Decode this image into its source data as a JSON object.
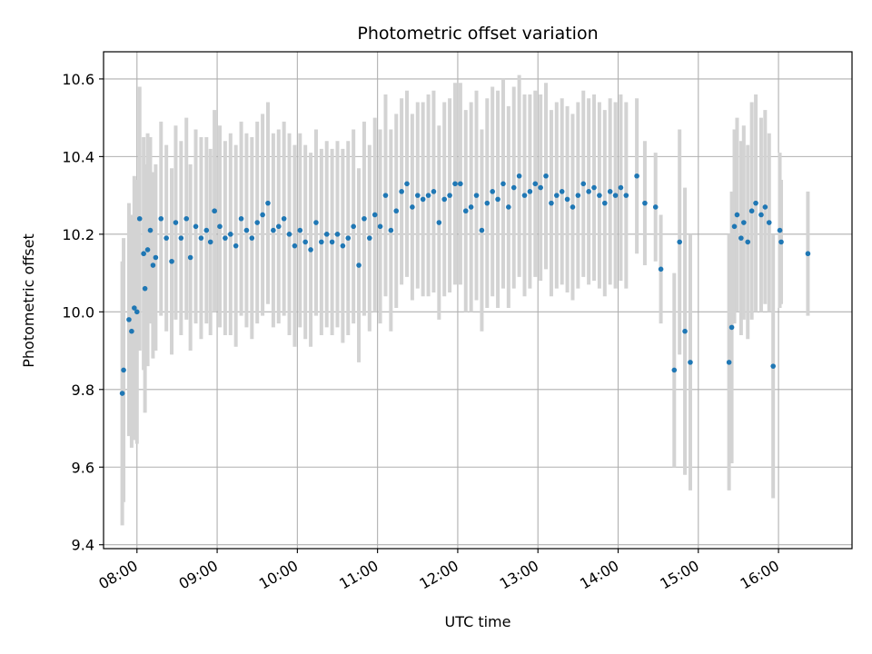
{
  "chart_data": {
    "type": "scatter",
    "title": "Photometric offset variation",
    "xlabel": "UTC time",
    "ylabel": "Photometric offset",
    "grid": true,
    "xlim": [
      "07:35",
      "16:55"
    ],
    "ylim": [
      9.39,
      10.67
    ],
    "x_ticks": [
      "08:00",
      "09:00",
      "10:00",
      "11:00",
      "12:00",
      "13:00",
      "14:00",
      "15:00",
      "16:00"
    ],
    "y_ticks": [
      9.4,
      9.6,
      9.8,
      10.0,
      10.2,
      10.4,
      10.6
    ],
    "y_tick_labels": [
      "9.4",
      "9.6",
      "9.8",
      "10.0",
      "10.2",
      "10.4",
      "10.6"
    ],
    "colors": {
      "points": "#1f77b4",
      "error_bars": "#d3d3d3",
      "grid": "#b0b0b0"
    },
    "series": [
      {
        "x": [
          "07:49",
          "07:50",
          "07:54",
          "07:56",
          "07:58",
          "08:00",
          "08:02",
          "08:05",
          "08:06",
          "08:08",
          "08:10",
          "08:12",
          "08:14",
          "08:18",
          "08:22",
          "08:26",
          "08:29",
          "08:33",
          "08:37",
          "08:40",
          "08:44",
          "08:48",
          "08:52",
          "08:55",
          "08:58",
          "09:02",
          "09:06",
          "09:10",
          "09:14",
          "09:18",
          "09:22",
          "09:26",
          "09:30",
          "09:34",
          "09:38",
          "09:42",
          "09:46",
          "09:50",
          "09:54",
          "09:58",
          "10:02",
          "10:06",
          "10:10",
          "10:14",
          "10:18",
          "10:22",
          "10:26",
          "10:30",
          "10:34",
          "10:38",
          "10:42",
          "10:46",
          "10:50",
          "10:54",
          "10:58",
          "11:02",
          "11:06",
          "11:10",
          "11:14",
          "11:18",
          "11:22",
          "11:26",
          "11:30",
          "11:34",
          "11:38",
          "11:42",
          "11:46",
          "11:50",
          "11:54",
          "11:58",
          "12:02",
          "12:06",
          "12:10",
          "12:14",
          "12:18",
          "12:22",
          "12:26",
          "12:30",
          "12:34",
          "12:38",
          "12:42",
          "12:46",
          "12:50",
          "12:54",
          "12:58",
          "13:02",
          "13:06",
          "13:10",
          "13:14",
          "13:18",
          "13:22",
          "13:26",
          "13:30",
          "13:34",
          "13:38",
          "13:42",
          "13:46",
          "13:50",
          "13:54",
          "13:58",
          "14:02",
          "14:06",
          "14:14",
          "14:20",
          "14:28",
          "14:32",
          "14:42",
          "14:46",
          "14:50",
          "14:54",
          "15:23",
          "15:25",
          "15:27",
          "15:29",
          "15:32",
          "15:34",
          "15:37",
          "15:40",
          "15:43",
          "15:47",
          "15:50",
          "15:53",
          "15:56",
          "16:01",
          "16:02",
          "16:22"
        ],
        "y": [
          9.79,
          9.85,
          9.98,
          9.95,
          10.01,
          10.0,
          10.24,
          10.15,
          10.06,
          10.16,
          10.21,
          10.12,
          10.14,
          10.24,
          10.19,
          10.13,
          10.23,
          10.19,
          10.24,
          10.14,
          10.22,
          10.19,
          10.21,
          10.18,
          10.26,
          10.22,
          10.19,
          10.2,
          10.17,
          10.24,
          10.21,
          10.19,
          10.23,
          10.25,
          10.28,
          10.21,
          10.22,
          10.24,
          10.2,
          10.17,
          10.21,
          10.18,
          10.16,
          10.23,
          10.18,
          10.2,
          10.18,
          10.2,
          10.17,
          10.19,
          10.22,
          10.12,
          10.24,
          10.19,
          10.25,
          10.22,
          10.3,
          10.21,
          10.26,
          10.31,
          10.33,
          10.27,
          10.3,
          10.29,
          10.3,
          10.31,
          10.23,
          10.29,
          10.3,
          10.33,
          10.33,
          10.26,
          10.27,
          10.3,
          10.21,
          10.28,
          10.31,
          10.29,
          10.33,
          10.27,
          10.32,
          10.35,
          10.3,
          10.31,
          10.33,
          10.32,
          10.35,
          10.28,
          10.3,
          10.31,
          10.29,
          10.27,
          10.3,
          10.33,
          10.31,
          10.32,
          10.3,
          10.28,
          10.31,
          10.3,
          10.32,
          10.3,
          10.35,
          10.28,
          10.27,
          10.11,
          9.85,
          10.18,
          9.95,
          9.87,
          9.87,
          9.96,
          10.22,
          10.25,
          10.19,
          10.23,
          10.18,
          10.26,
          10.28,
          10.25,
          10.27,
          10.23,
          9.86,
          10.21,
          10.18,
          10.15
        ],
        "yerr": [
          0.34,
          0.34,
          0.3,
          0.3,
          0.34,
          0.34,
          0.34,
          0.3,
          0.32,
          0.3,
          0.24,
          0.24,
          0.24,
          0.25,
          0.24,
          0.24,
          0.25,
          0.25,
          0.26,
          0.24,
          0.25,
          0.26,
          0.24,
          0.24,
          0.26,
          0.26,
          0.25,
          0.26,
          0.26,
          0.25,
          0.25,
          0.26,
          0.26,
          0.26,
          0.26,
          0.25,
          0.25,
          0.25,
          0.26,
          0.26,
          0.25,
          0.25,
          0.25,
          0.24,
          0.24,
          0.24,
          0.24,
          0.24,
          0.25,
          0.25,
          0.25,
          0.25,
          0.25,
          0.24,
          0.25,
          0.25,
          0.26,
          0.26,
          0.25,
          0.24,
          0.24,
          0.24,
          0.24,
          0.25,
          0.26,
          0.26,
          0.25,
          0.25,
          0.25,
          0.26,
          0.26,
          0.26,
          0.27,
          0.27,
          0.26,
          0.27,
          0.27,
          0.28,
          0.27,
          0.26,
          0.26,
          0.26,
          0.26,
          0.25,
          0.24,
          0.24,
          0.24,
          0.24,
          0.24,
          0.24,
          0.24,
          0.24,
          0.24,
          0.24,
          0.24,
          0.24,
          0.24,
          0.24,
          0.24,
          0.24,
          0.24,
          0.24,
          0.2,
          0.16,
          0.14,
          0.14,
          0.25,
          0.29,
          0.37,
          0.33,
          0.33,
          0.35,
          0.25,
          0.25,
          0.25,
          0.25,
          0.25,
          0.28,
          0.28,
          0.25,
          0.25,
          0.23,
          0.34,
          0.2,
          0.16,
          0.16
        ]
      }
    ]
  }
}
